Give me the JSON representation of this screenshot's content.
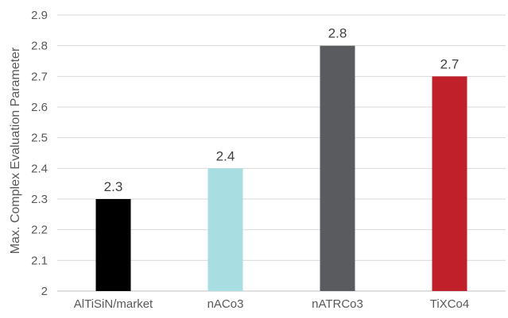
{
  "chart_data": {
    "type": "bar",
    "title": "",
    "xlabel": "",
    "ylabel": "Max. Complex Evaluation Parameter",
    "ylim": [
      2,
      2.9
    ],
    "yticks": [
      2,
      2.1,
      2.2,
      2.3,
      2.4,
      2.5,
      2.6,
      2.7,
      2.8,
      2.9
    ],
    "ytick_labels": [
      "2",
      "2.1",
      "2.2",
      "2.3",
      "2.4",
      "2.5",
      "2.6",
      "2.7",
      "2.8",
      "2.9"
    ],
    "grid": true,
    "legend": "none",
    "categories": [
      "AlTiSiN/market",
      "nACo3",
      "nATRCo3",
      "TiXCo4"
    ],
    "values": [
      2.3,
      2.4,
      2.8,
      2.7
    ],
    "data_labels": [
      "2.3",
      "2.4",
      "2.8",
      "2.7"
    ],
    "colors": [
      "#000000",
      "#a8dde2",
      "#5a5b5f",
      "#c0202a"
    ]
  }
}
